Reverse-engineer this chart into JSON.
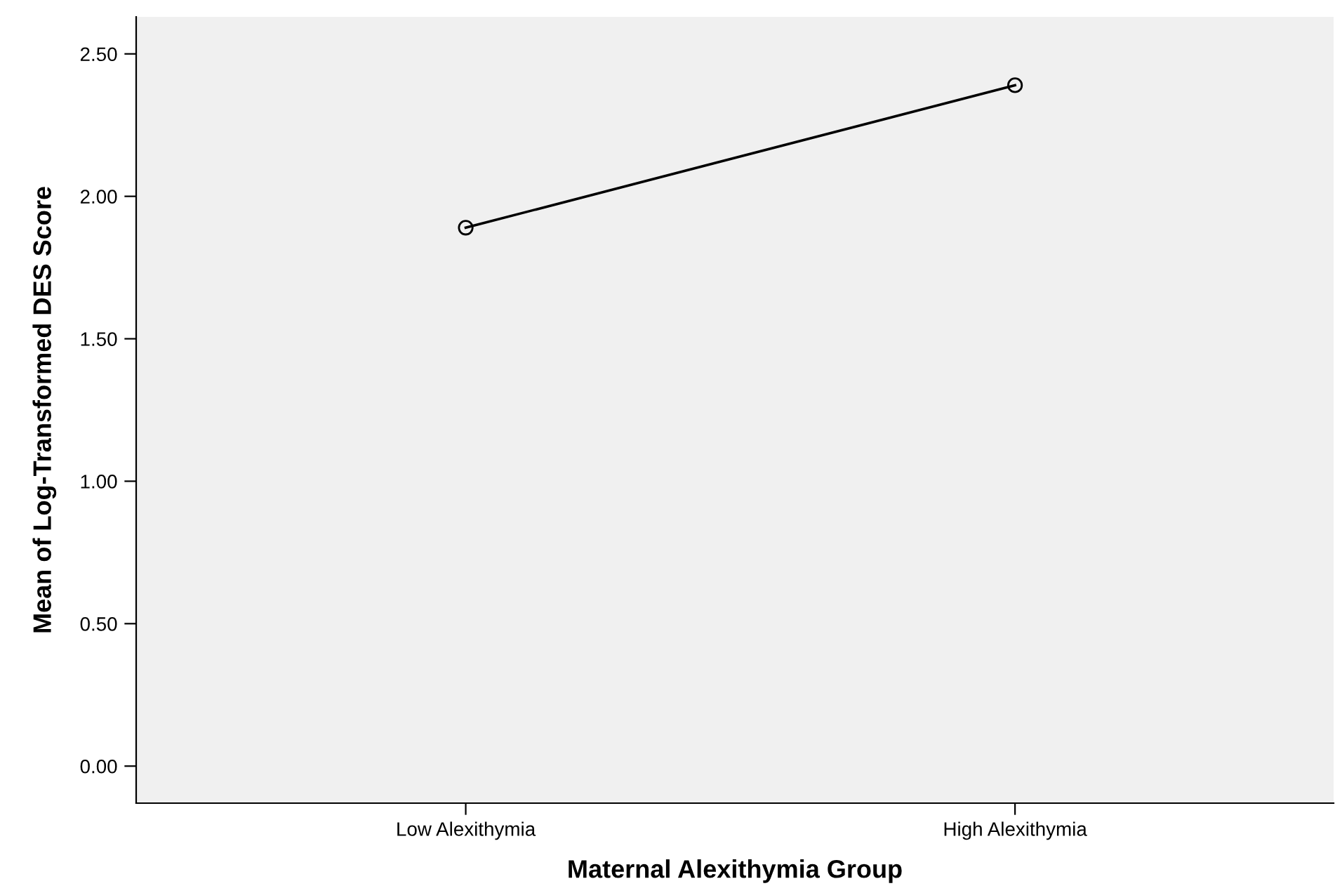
{
  "chart_data": {
    "type": "line",
    "xlabel": "Maternal Alexithymia Group",
    "ylabel": "Mean of Log-Transformed DES Score",
    "categories": [
      "Low Alexithymia",
      "High Alexithymia"
    ],
    "series": [
      {
        "color": "#000000",
        "values": [
          1.89,
          2.39
        ]
      }
    ],
    "ylim": [
      -0.13,
      2.63
    ],
    "yticks": [
      {
        "value": 0,
        "label": "0.00"
      },
      {
        "value": 0.5,
        "label": "0.50"
      },
      {
        "value": 1,
        "label": "1.00"
      },
      {
        "value": 1.5,
        "label": "1.50"
      },
      {
        "value": 2,
        "label": "2.00"
      },
      {
        "value": 2.5,
        "label": "2.50"
      }
    ],
    "grid": false,
    "legend": false,
    "marker": "circle",
    "line_style": "solid"
  }
}
